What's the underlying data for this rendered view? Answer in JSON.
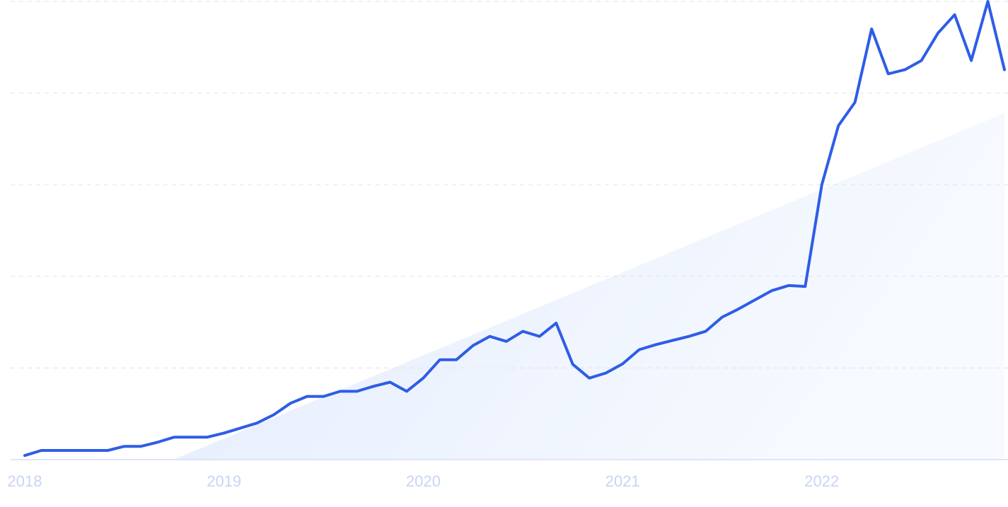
{
  "chart_data": {
    "type": "line",
    "categories": [
      "2018",
      null,
      null,
      null,
      null,
      null,
      null,
      null,
      null,
      null,
      null,
      null,
      "2019",
      null,
      null,
      null,
      null,
      null,
      null,
      null,
      null,
      null,
      null,
      null,
      "2020",
      null,
      null,
      null,
      null,
      null,
      null,
      null,
      null,
      null,
      null,
      null,
      "2021",
      null,
      null,
      null,
      null,
      null,
      null,
      null,
      null,
      null,
      null,
      null,
      "2022",
      null,
      null,
      null,
      null,
      null,
      null,
      null,
      null,
      null,
      null,
      null
    ],
    "series": [
      {
        "color": "#2e5de6",
        "values": [
          0.9,
          2,
          2,
          2,
          2,
          2,
          2.9,
          2.9,
          3.8,
          4.9,
          4.9,
          4.9,
          5.8,
          6.9,
          8,
          9.8,
          12.3,
          13.8,
          13.8,
          14.9,
          14.9,
          16,
          16.9,
          14.9,
          17.8,
          21.8,
          21.8,
          24.9,
          26.9,
          25.8,
          28,
          26.9,
          29.8,
          20.8,
          17.8,
          18.9,
          20.9,
          24,
          25.1,
          26,
          26.9,
          28,
          31.1,
          32.9,
          34.9,
          36.9,
          38,
          37.8,
          60,
          72.9,
          78,
          94,
          84.2,
          85.1,
          87.1,
          93.1,
          97.1,
          87.1,
          100,
          85.1
        ]
      }
    ],
    "ylim": [
      0,
      100
    ],
    "yticks": [
      0,
      20,
      40,
      60,
      80,
      100
    ],
    "grid": true
  }
}
